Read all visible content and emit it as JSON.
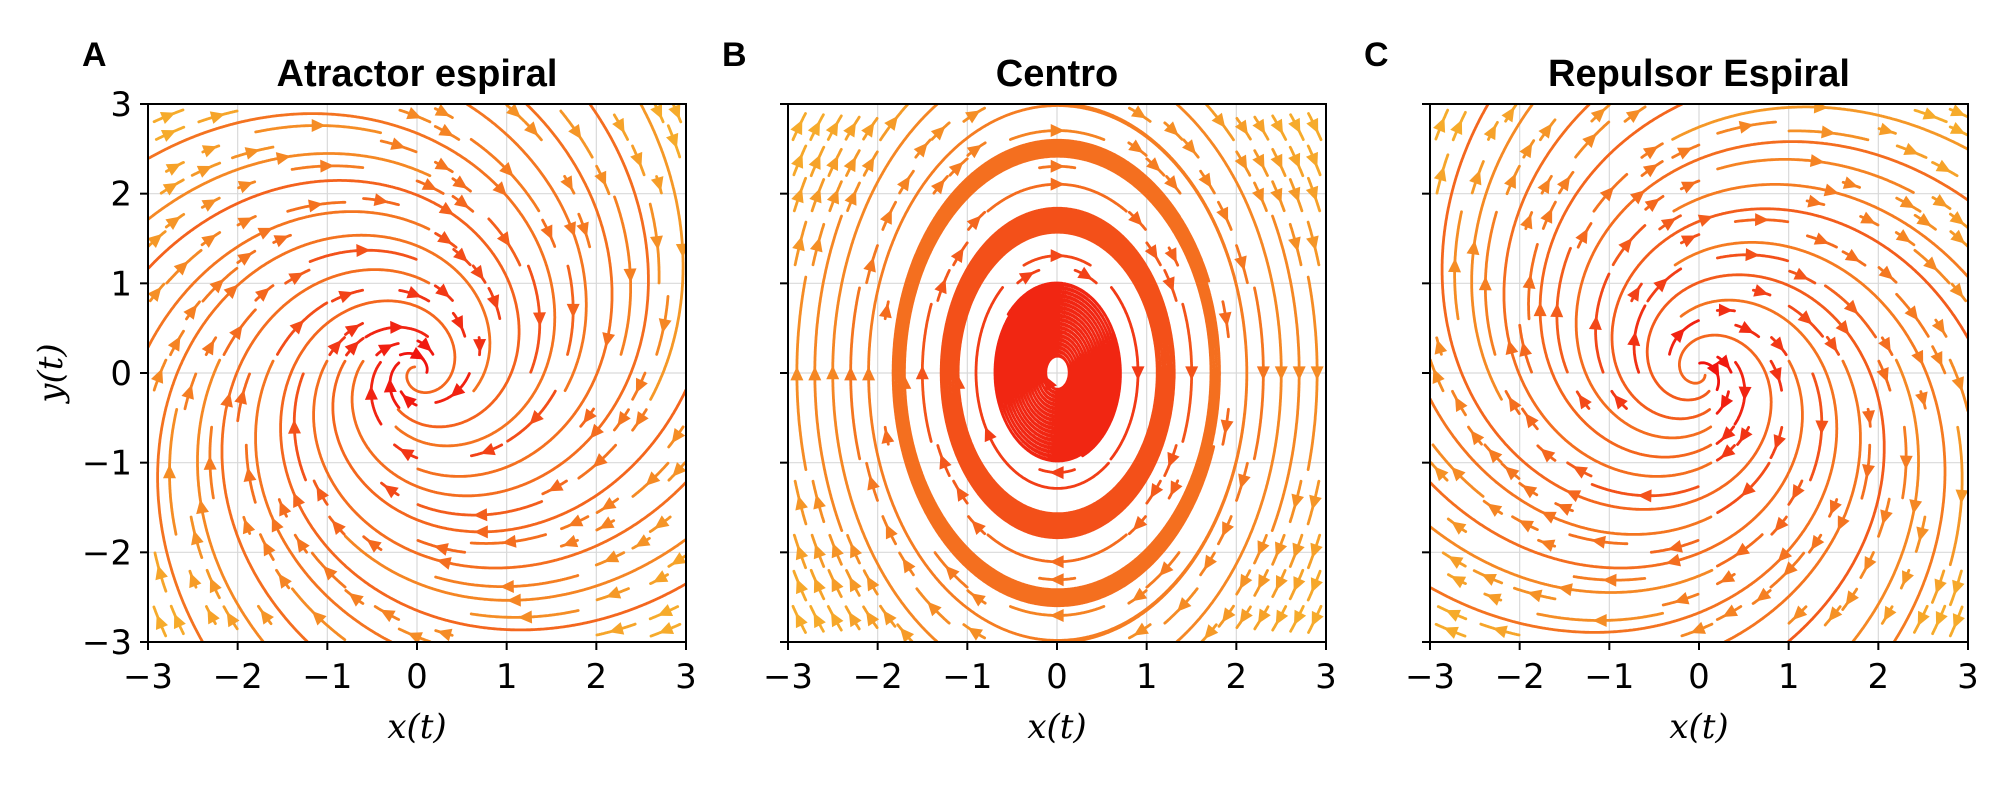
{
  "chart_data": [
    {
      "type": "streamplot",
      "panel_letter": "A",
      "title": "Atractor espiral",
      "system": {
        "dx": [
          -0.4,
          1
        ],
        "dy": [
          -1,
          -0.4
        ]
      },
      "xlim": [
        -3,
        3
      ],
      "ylim": [
        -3,
        3
      ],
      "xticks": [
        -3,
        -2,
        -1,
        0,
        1,
        2,
        3
      ],
      "yticks": [
        -3,
        -2,
        -1,
        0,
        1,
        2,
        3
      ],
      "xtick_labels": [
        "−3",
        "−2",
        "−1",
        "0",
        "1",
        "2",
        "3"
      ],
      "ytick_labels": [
        "−3",
        "−2",
        "−1",
        "0",
        "1",
        "2",
        "3"
      ],
      "xlabel": "x(t)",
      "ylabel": "y(t)",
      "grid": true
    },
    {
      "type": "streamplot",
      "panel_letter": "B",
      "title": "Centro",
      "system": {
        "dx": [
          0,
          1
        ],
        "dy": [
          -2,
          0
        ]
      },
      "xlim": [
        -3,
        3
      ],
      "ylim": [
        -3,
        3
      ],
      "xticks": [
        -3,
        -2,
        -1,
        0,
        1,
        2,
        3
      ],
      "yticks": [
        -3,
        -2,
        -1,
        0,
        1,
        2,
        3
      ],
      "xtick_labels": [
        "−3",
        "−2",
        "−1",
        "0",
        "1",
        "2",
        "3"
      ],
      "ytick_labels": [],
      "xlabel": "x(t)",
      "ylabel": "",
      "grid": true
    },
    {
      "type": "streamplot",
      "panel_letter": "C",
      "title": "Repulsor Espiral",
      "system": {
        "dx": [
          0.4,
          1
        ],
        "dy": [
          -1,
          0.4
        ]
      },
      "xlim": [
        -3,
        3
      ],
      "ylim": [
        -3,
        3
      ],
      "xticks": [
        -3,
        -2,
        -1,
        0,
        1,
        2,
        3
      ],
      "yticks": [
        -3,
        -2,
        -1,
        0,
        1,
        2,
        3
      ],
      "xtick_labels": [
        "−3",
        "−2",
        "−1",
        "0",
        "1",
        "2",
        "3"
      ],
      "ytick_labels": [],
      "xlabel": "x(t)",
      "ylabel": "",
      "grid": true
    }
  ],
  "colors": {
    "near": "#f0140f",
    "mid": "#f46a1e",
    "far": "#f6ab2b",
    "frame": "#000000"
  }
}
